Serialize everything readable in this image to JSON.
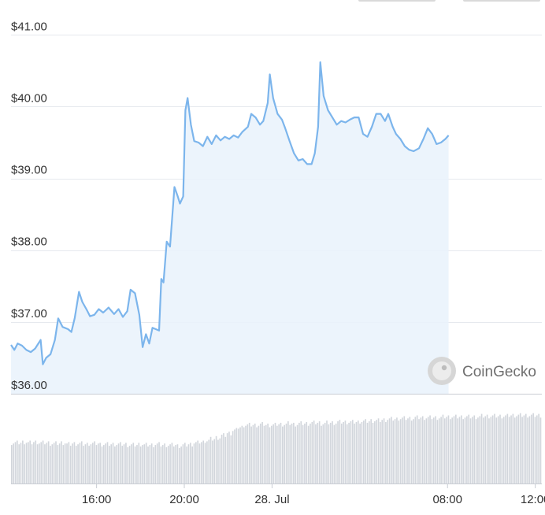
{
  "chart_data": {
    "type": "area",
    "title": "",
    "xlabel": "",
    "ylabel": "",
    "y_ticks": [
      "$36.00",
      "$37.00",
      "$38.00",
      "$39.00",
      "$40.00",
      "$41.00"
    ],
    "y_tick_values": [
      36,
      37,
      38,
      39,
      40,
      41
    ],
    "ylim": [
      36,
      41.3
    ],
    "x_ticks": [
      "16:00",
      "20:00",
      "28. Jul",
      "08:00",
      "12:00"
    ],
    "x_tick_hours": [
      16,
      20,
      24,
      32,
      36
    ],
    "xlim_hours": [
      12.1,
      36.3
    ],
    "grid": true,
    "series": [
      {
        "line_color": "#7cb5ec",
        "fill_color": "#e9f2fc",
        "points": [
          [
            12.1,
            36.68
          ],
          [
            12.25,
            36.61
          ],
          [
            12.4,
            36.7
          ],
          [
            12.6,
            36.67
          ],
          [
            12.8,
            36.61
          ],
          [
            13.0,
            36.58
          ],
          [
            13.2,
            36.63
          ],
          [
            13.45,
            36.75
          ],
          [
            13.55,
            36.41
          ],
          [
            13.7,
            36.5
          ],
          [
            13.9,
            36.55
          ],
          [
            14.1,
            36.75
          ],
          [
            14.25,
            37.05
          ],
          [
            14.45,
            36.93
          ],
          [
            14.7,
            36.9
          ],
          [
            14.85,
            36.86
          ],
          [
            15.0,
            37.05
          ],
          [
            15.2,
            37.42
          ],
          [
            15.35,
            37.28
          ],
          [
            15.55,
            37.17
          ],
          [
            15.7,
            37.08
          ],
          [
            15.9,
            37.1
          ],
          [
            16.1,
            37.18
          ],
          [
            16.3,
            37.13
          ],
          [
            16.55,
            37.2
          ],
          [
            16.8,
            37.11
          ],
          [
            17.0,
            37.18
          ],
          [
            17.2,
            37.07
          ],
          [
            17.4,
            37.15
          ],
          [
            17.55,
            37.45
          ],
          [
            17.75,
            37.4
          ],
          [
            17.95,
            37.1
          ],
          [
            18.1,
            36.65
          ],
          [
            18.25,
            36.83
          ],
          [
            18.4,
            36.7
          ],
          [
            18.55,
            36.92
          ],
          [
            18.7,
            36.9
          ],
          [
            18.85,
            36.88
          ],
          [
            18.95,
            37.6
          ],
          [
            19.05,
            37.55
          ],
          [
            19.2,
            38.12
          ],
          [
            19.35,
            38.05
          ],
          [
            19.55,
            38.88
          ],
          [
            19.7,
            38.75
          ],
          [
            19.8,
            38.65
          ],
          [
            19.95,
            38.75
          ],
          [
            20.05,
            39.95
          ],
          [
            20.15,
            40.12
          ],
          [
            20.3,
            39.75
          ],
          [
            20.45,
            39.52
          ],
          [
            20.65,
            39.5
          ],
          [
            20.85,
            39.45
          ],
          [
            21.05,
            39.58
          ],
          [
            21.25,
            39.48
          ],
          [
            21.45,
            39.6
          ],
          [
            21.65,
            39.53
          ],
          [
            21.85,
            39.58
          ],
          [
            22.05,
            39.55
          ],
          [
            22.25,
            39.6
          ],
          [
            22.45,
            39.57
          ],
          [
            22.65,
            39.65
          ],
          [
            22.9,
            39.72
          ],
          [
            23.05,
            39.9
          ],
          [
            23.25,
            39.85
          ],
          [
            23.45,
            39.75
          ],
          [
            23.6,
            39.8
          ],
          [
            23.8,
            40.05
          ],
          [
            23.9,
            40.45
          ],
          [
            24.05,
            40.12
          ],
          [
            24.25,
            39.9
          ],
          [
            24.45,
            39.82
          ],
          [
            24.6,
            39.7
          ],
          [
            24.8,
            39.52
          ],
          [
            25.0,
            39.35
          ],
          [
            25.2,
            39.25
          ],
          [
            25.4,
            39.27
          ],
          [
            25.6,
            39.2
          ],
          [
            25.8,
            39.2
          ],
          [
            25.95,
            39.35
          ],
          [
            26.1,
            39.72
          ],
          [
            26.2,
            40.62
          ],
          [
            26.35,
            40.15
          ],
          [
            26.55,
            39.95
          ],
          [
            26.75,
            39.85
          ],
          [
            26.95,
            39.75
          ],
          [
            27.15,
            39.8
          ],
          [
            27.35,
            39.78
          ],
          [
            27.55,
            39.82
          ],
          [
            27.75,
            39.85
          ],
          [
            27.95,
            39.85
          ],
          [
            28.15,
            39.62
          ],
          [
            28.35,
            39.58
          ],
          [
            28.55,
            39.72
          ],
          [
            28.75,
            39.9
          ],
          [
            28.95,
            39.9
          ],
          [
            29.15,
            39.8
          ],
          [
            29.3,
            39.9
          ],
          [
            29.5,
            39.72
          ],
          [
            29.65,
            39.62
          ],
          [
            29.85,
            39.55
          ],
          [
            30.05,
            39.45
          ],
          [
            30.25,
            39.4
          ],
          [
            30.45,
            39.38
          ],
          [
            30.7,
            39.42
          ],
          [
            30.9,
            39.55
          ],
          [
            31.1,
            39.7
          ],
          [
            31.3,
            39.62
          ],
          [
            31.5,
            39.48
          ],
          [
            31.7,
            39.5
          ],
          [
            31.9,
            39.55
          ],
          [
            32.05,
            39.6
          ]
        ]
      }
    ],
    "volume": {
      "bar_color": "#d2d6dc",
      "relative_heights": [
        0.55,
        0.55,
        0.56,
        0.55,
        0.56,
        0.55,
        0.55,
        0.54,
        0.54,
        0.55,
        0.53,
        0.54,
        0.54,
        0.53,
        0.54,
        0.54,
        0.53,
        0.53,
        0.53,
        0.53,
        0.53,
        0.52,
        0.52,
        0.53,
        0.52,
        0.52,
        0.53,
        0.52,
        0.52,
        0.52,
        0.51,
        0.52,
        0.53,
        0.55,
        0.56,
        0.58,
        0.6,
        0.62,
        0.65,
        0.68,
        0.72,
        0.76,
        0.79,
        0.79,
        0.79,
        0.8,
        0.79,
        0.79,
        0.8,
        0.8,
        0.81,
        0.8,
        0.81,
        0.81,
        0.82,
        0.82,
        0.81,
        0.82,
        0.82,
        0.83,
        0.83,
        0.83,
        0.83,
        0.84,
        0.84,
        0.85,
        0.85,
        0.86,
        0.87,
        0.87,
        0.88,
        0.88,
        0.88,
        0.89,
        0.89,
        0.89,
        0.89,
        0.89,
        0.9,
        0.9,
        0.9,
        0.9,
        0.9,
        0.9,
        0.9,
        0.91,
        0.91,
        0.91,
        0.91,
        0.91,
        0.92,
        0.92,
        0.92,
        0.92,
        0.92,
        0.92
      ]
    },
    "watermark": "CoinGecko"
  }
}
